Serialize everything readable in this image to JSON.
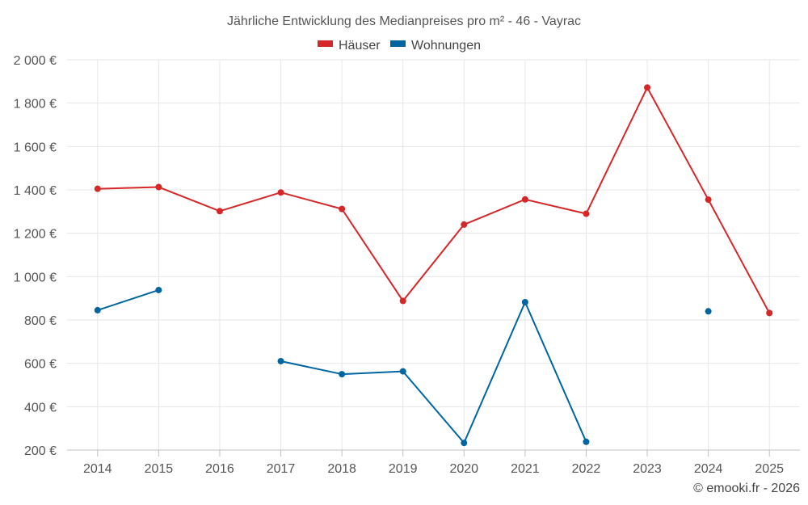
{
  "chart_data": {
    "type": "line",
    "title": "Jährliche Entwicklung des Medianpreises pro m² - 46 - Vayrac",
    "categories": [
      "2014",
      "2015",
      "2016",
      "2017",
      "2018",
      "2019",
      "2020",
      "2021",
      "2022",
      "2023",
      "2024",
      "2025"
    ],
    "series": [
      {
        "name": "Häuser",
        "color": "#d62728",
        "values": [
          1405,
          1413,
          1302,
          1388,
          1312,
          888,
          1240,
          1356,
          1290,
          1872,
          1355,
          832
        ]
      },
      {
        "name": "Wohnungen",
        "color": "#0065a0",
        "values": [
          845,
          938,
          null,
          610,
          550,
          563,
          233,
          882,
          238,
          null,
          840,
          null
        ]
      }
    ],
    "ylim": [
      200,
      2000
    ],
    "yticks": [
      200,
      400,
      600,
      800,
      1000,
      1200,
      1400,
      1600,
      1800,
      2000
    ],
    "ytick_labels": [
      "200 €",
      "400 €",
      "600 €",
      "800 €",
      "1 000 €",
      "1 200 €",
      "1 400 €",
      "1 600 €",
      "1 800 €",
      "2 000 €"
    ],
    "grid": true,
    "legend": "top-center"
  },
  "credit": "© emooki.fr - 2026"
}
